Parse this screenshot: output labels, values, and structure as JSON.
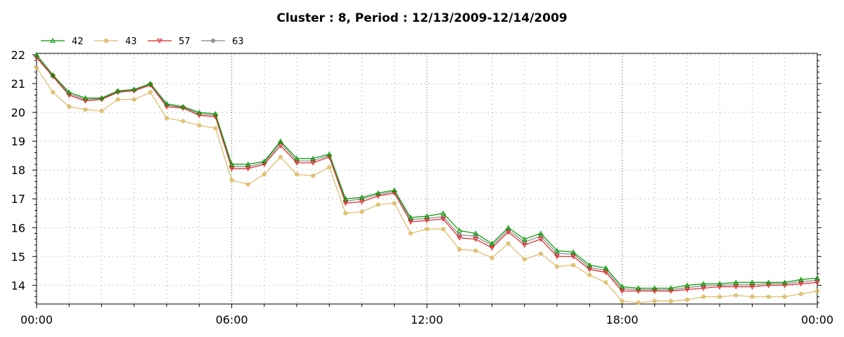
{
  "chart_data": {
    "type": "line",
    "title": "Cluster : 8, Period : 12/13/2009-12/14/2009",
    "xlabel": "",
    "ylabel": "",
    "xlim": [
      0,
      24
    ],
    "ylim": [
      13.35,
      22.05
    ],
    "x_ticks": [
      {
        "value": 0,
        "label": "00:00"
      },
      {
        "value": 6,
        "label": "06:00"
      },
      {
        "value": 12,
        "label": "12:00"
      },
      {
        "value": 18,
        "label": "18:00"
      },
      {
        "value": 24,
        "label": "00:00"
      }
    ],
    "y_ticks": [
      {
        "value": 14,
        "label": "14"
      },
      {
        "value": 15,
        "label": "15"
      },
      {
        "value": 16,
        "label": "16"
      },
      {
        "value": 17,
        "label": "17"
      },
      {
        "value": 18,
        "label": "18"
      },
      {
        "value": 19,
        "label": "19"
      },
      {
        "value": 20,
        "label": "20"
      },
      {
        "value": 21,
        "label": "21"
      },
      {
        "value": 22,
        "label": "22"
      }
    ],
    "grid": "dotted",
    "legend_position": "top-left",
    "x": [
      0,
      0.5,
      1,
      1.5,
      2,
      2.5,
      3,
      3.5,
      4,
      4.5,
      5,
      5.5,
      6,
      6.5,
      7,
      7.5,
      8,
      8.5,
      9,
      9.5,
      10,
      10.5,
      11,
      11.5,
      12,
      12.5,
      13,
      13.5,
      14,
      14.5,
      15,
      15.5,
      16,
      16.5,
      17,
      17.5,
      18,
      18.5,
      19,
      19.5,
      20,
      20.5,
      21,
      21.5,
      22,
      22.5,
      23,
      23.5,
      24
    ],
    "series": [
      {
        "name": "42",
        "color": "#009900",
        "marker": "triangle-up",
        "values": [
          22.0,
          21.3,
          20.7,
          20.5,
          20.5,
          20.75,
          20.8,
          21.0,
          20.3,
          20.2,
          20.0,
          19.95,
          18.2,
          18.2,
          18.3,
          19.0,
          18.4,
          18.4,
          18.55,
          17.0,
          17.05,
          17.2,
          17.3,
          16.35,
          16.4,
          16.5,
          15.9,
          15.8,
          15.45,
          16.0,
          15.6,
          15.8,
          15.2,
          15.15,
          14.7,
          14.6,
          13.95,
          13.9,
          13.9,
          13.9,
          14.0,
          14.05,
          14.05,
          14.1,
          14.1,
          14.1,
          14.1,
          14.2,
          14.25
        ]
      },
      {
        "name": "43",
        "color": "#ddbb66",
        "marker": "circle",
        "values": [
          21.55,
          20.7,
          20.2,
          20.1,
          20.05,
          20.45,
          20.45,
          20.7,
          19.8,
          19.7,
          19.55,
          19.45,
          17.65,
          17.5,
          17.85,
          18.45,
          17.85,
          17.8,
          18.1,
          16.5,
          16.55,
          16.8,
          16.85,
          15.8,
          15.95,
          15.95,
          15.25,
          15.2,
          14.95,
          15.45,
          14.9,
          15.1,
          14.65,
          14.7,
          14.35,
          14.1,
          13.45,
          13.4,
          13.45,
          13.45,
          13.5,
          13.6,
          13.6,
          13.65,
          13.6,
          13.6,
          13.6,
          13.7,
          13.8
        ]
      },
      {
        "name": "57",
        "color": "#dd2222",
        "marker": "triangle-down",
        "values": [
          21.9,
          21.25,
          20.6,
          20.4,
          20.45,
          20.7,
          20.75,
          20.95,
          20.2,
          20.15,
          19.9,
          19.85,
          18.05,
          18.05,
          18.2,
          18.85,
          18.25,
          18.25,
          18.45,
          16.85,
          16.9,
          17.1,
          17.2,
          16.2,
          16.25,
          16.3,
          15.65,
          15.6,
          15.3,
          15.85,
          15.4,
          15.6,
          15.0,
          15.0,
          14.55,
          14.45,
          13.8,
          13.8,
          13.8,
          13.8,
          13.85,
          13.9,
          13.95,
          13.95,
          13.95,
          14.0,
          14.0,
          14.05,
          14.1
        ]
      },
      {
        "name": "63",
        "color": "#888888",
        "marker": "circle",
        "values": [
          21.95,
          21.28,
          20.65,
          20.45,
          20.48,
          20.72,
          20.78,
          20.98,
          20.25,
          20.18,
          19.95,
          19.9,
          18.12,
          18.12,
          18.25,
          18.95,
          18.32,
          18.32,
          18.5,
          16.92,
          17.0,
          17.15,
          17.25,
          16.28,
          16.32,
          16.38,
          15.75,
          15.7,
          15.38,
          15.92,
          15.5,
          15.7,
          15.1,
          15.08,
          14.62,
          14.52,
          13.88,
          13.85,
          13.85,
          13.85,
          13.92,
          13.98,
          14.0,
          14.02,
          14.02,
          14.05,
          14.05,
          14.12,
          14.18
        ]
      }
    ]
  }
}
